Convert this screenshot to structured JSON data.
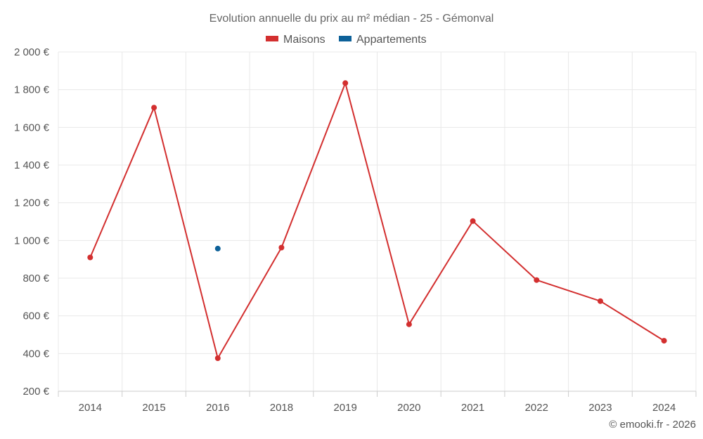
{
  "chart_data": {
    "type": "line",
    "title": "Evolution annuelle du prix au m² médian - 25 - Gémonval",
    "categories": [
      "2014",
      "2015",
      "2016",
      "2018",
      "2019",
      "2020",
      "2021",
      "2022",
      "2023",
      "2024"
    ],
    "ylim": [
      200,
      2000
    ],
    "yticks": [
      200,
      400,
      600,
      800,
      1000,
      1200,
      1400,
      1600,
      1800,
      2000
    ],
    "ytick_labels": [
      "200 €",
      "400 €",
      "600 €",
      "800 €",
      "1 000 €",
      "1 200 €",
      "1 400 €",
      "1 600 €",
      "1 800 €",
      "2 000 €"
    ],
    "grid": true,
    "legend_position": "top-center",
    "series": [
      {
        "name": "Maisons",
        "color": "#d32f2f",
        "values": [
          910,
          1705,
          375,
          962,
          1835,
          555,
          1103,
          790,
          678,
          468
        ]
      },
      {
        "name": "Appartements",
        "color": "#0d6199",
        "values": [
          null,
          null,
          957,
          null,
          null,
          null,
          null,
          null,
          null,
          null
        ]
      }
    ]
  },
  "credit": "© emooki.fr - 2026"
}
